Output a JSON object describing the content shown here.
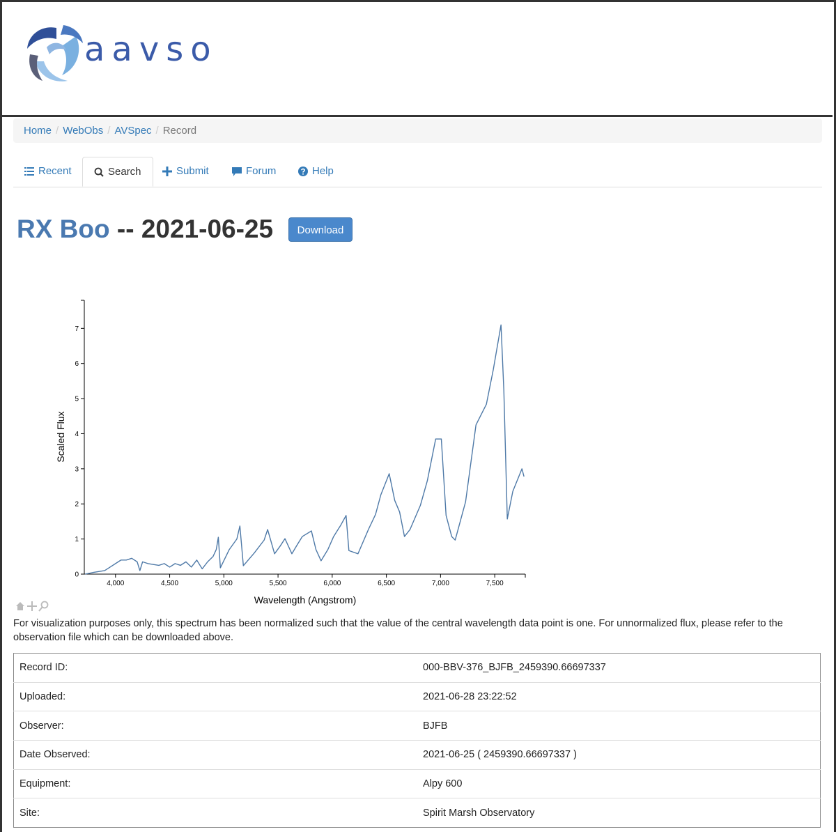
{
  "header": {
    "logo_text": "aavso"
  },
  "breadcrumb": {
    "items": [
      "Home",
      "WebObs",
      "AVSpec",
      "Record"
    ],
    "separator": "/"
  },
  "tabs": [
    "Recent",
    "Search",
    "Submit",
    "Forum",
    "Help"
  ],
  "title": {
    "star": "RX Boo",
    "rest": "-- 2021-06-25"
  },
  "download_button": "Download",
  "chart_data": {
    "type": "line",
    "x_label": "Wavelength (Angstrom)",
    "y_label": "Scaled Flux",
    "color": "#4e79a7",
    "x": [
      3720,
      3800,
      3900,
      3950,
      4000,
      4050,
      4100,
      4150,
      4200,
      4225,
      4250,
      4300,
      4400,
      4450,
      4500,
      4550,
      4600,
      4650,
      4700,
      4750,
      4800,
      4850,
      4900,
      4930,
      4949,
      4968,
      5050,
      5120,
      5148,
      5180,
      5280,
      5372,
      5404,
      5468,
      5520,
      5564,
      5628,
      5680,
      5724,
      5808,
      5850,
      5897,
      5960,
      6013,
      6080,
      6128,
      6154,
      6238,
      6334,
      6400,
      6449,
      6526,
      6577,
      6622,
      6667,
      6718,
      6814,
      6878,
      6955,
      7007,
      7051,
      7103,
      7135,
      7231,
      7327,
      7423,
      7487,
      7558,
      7584,
      7616,
      7667,
      7751,
      7770
    ],
    "values": [
      0.0,
      0.05,
      0.1,
      0.2,
      0.3,
      0.4,
      0.4,
      0.45,
      0.35,
      0.1,
      0.35,
      0.3,
      0.25,
      0.3,
      0.2,
      0.3,
      0.25,
      0.35,
      0.2,
      0.4,
      0.15,
      0.35,
      0.5,
      0.7,
      1.05,
      0.18,
      0.7,
      1.0,
      1.37,
      0.24,
      0.6,
      0.97,
      1.27,
      0.58,
      0.8,
      1.01,
      0.58,
      0.85,
      1.07,
      1.23,
      0.7,
      0.38,
      0.7,
      1.07,
      1.4,
      1.67,
      0.67,
      0.58,
      1.27,
      1.7,
      2.26,
      2.86,
      2.1,
      1.77,
      1.07,
      1.27,
      1.96,
      2.66,
      3.85,
      3.85,
      1.67,
      1.07,
      0.97,
      2.06,
      4.25,
      4.84,
      5.83,
      7.1,
      5.24,
      1.57,
      2.36,
      3.0,
      2.78
    ],
    "xlim": [
      3712,
      7782
    ],
    "ylim": [
      0,
      7.8
    ],
    "xticks": [
      {
        "value": 4000,
        "label": "4,000"
      },
      {
        "value": 4500,
        "label": "4,500"
      },
      {
        "value": 5000,
        "label": "5,000"
      },
      {
        "value": 5500,
        "label": "5,500"
      },
      {
        "value": 6000,
        "label": "6,000"
      },
      {
        "value": 6500,
        "label": "6,500"
      },
      {
        "value": 7000,
        "label": "7,000"
      },
      {
        "value": 7500,
        "label": "7,500"
      }
    ],
    "yticks": [
      0,
      1,
      2,
      3,
      4,
      5,
      6,
      7
    ]
  },
  "note": "For visualization purposes only, this spectrum has been normalized such that the value of the central wavelength data point is one. For unnormalized flux, please refer to the observation file which can be downloaded above.",
  "table": {
    "rows": [
      [
        "Record ID:",
        "000-BBV-376_BJFB_2459390.66697337"
      ],
      [
        "Uploaded:",
        "2021-06-28 23:22:52"
      ],
      [
        "Observer:",
        "BJFB"
      ],
      [
        "Date Observed:",
        "2021-06-25 ( 2459390.66697337 )"
      ],
      [
        "Equipment:",
        "Alpy 600"
      ],
      [
        "Site:",
        "Spirit Marsh Observatory"
      ]
    ]
  }
}
